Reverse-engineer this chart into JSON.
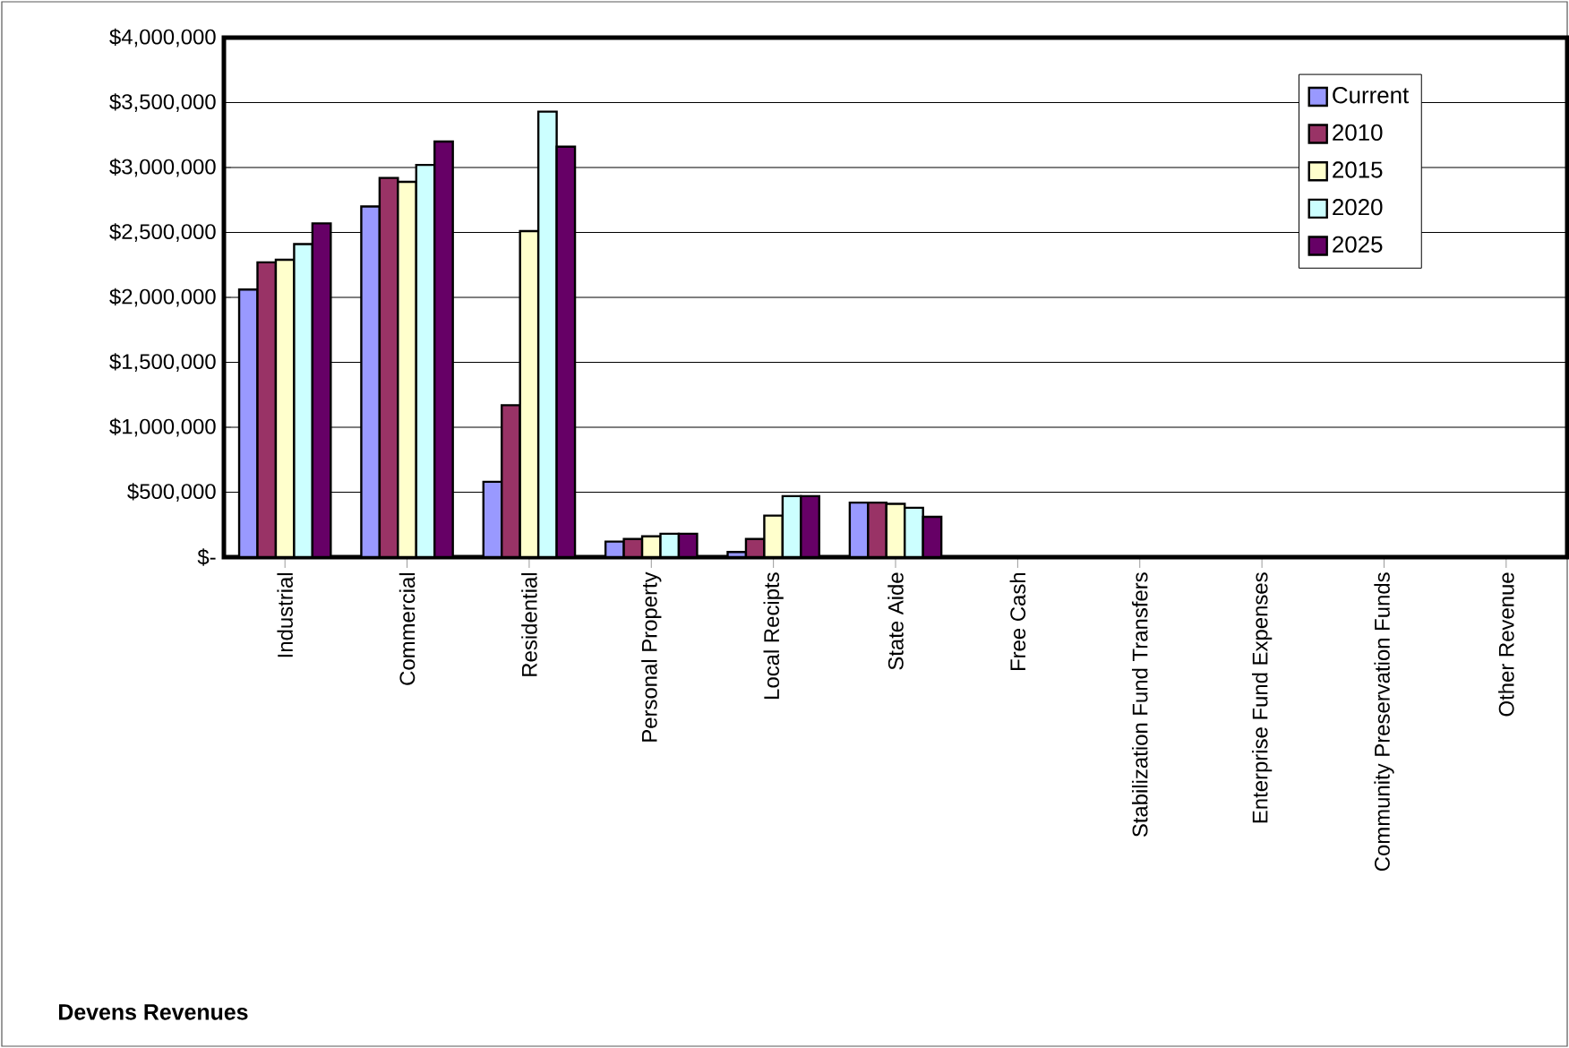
{
  "chart_data": {
    "type": "bar",
    "title": "Devens Revenues",
    "categories": [
      "Industrial",
      "Commercial",
      "Residential",
      "Personal Property",
      "Local Recipts",
      "State Aide",
      "Free Cash",
      "Stabilization Fund Transfers",
      "Enterprise Fund Expenses",
      "Community Preservation Funds",
      "Other Revenue"
    ],
    "series": [
      {
        "name": "Current",
        "color": "#9999ff",
        "values": [
          2060000,
          2700000,
          580000,
          120000,
          40000,
          420000,
          0,
          0,
          0,
          0,
          0
        ]
      },
      {
        "name": "2010",
        "color": "#993366",
        "values": [
          2270000,
          2920000,
          1170000,
          140000,
          140000,
          420000,
          0,
          0,
          0,
          0,
          0
        ]
      },
      {
        "name": "2015",
        "color": "#ffffcc",
        "values": [
          2290000,
          2890000,
          2510000,
          160000,
          320000,
          410000,
          0,
          0,
          0,
          0,
          0
        ]
      },
      {
        "name": "2020",
        "color": "#ccffff",
        "values": [
          2410000,
          3020000,
          3430000,
          180000,
          470000,
          380000,
          0,
          0,
          0,
          0,
          0
        ]
      },
      {
        "name": "2025",
        "color": "#660066",
        "values": [
          2570000,
          3200000,
          3160000,
          180000,
          470000,
          310000,
          0,
          0,
          0,
          0,
          0
        ]
      }
    ],
    "ylim": [
      0,
      4000000
    ],
    "yticks": [
      {
        "value": 0,
        "label": "$-"
      },
      {
        "value": 500000,
        "label": "$500,000"
      },
      {
        "value": 1000000,
        "label": "$1,000,000"
      },
      {
        "value": 1500000,
        "label": "$1,500,000"
      },
      {
        "value": 2000000,
        "label": "$2,000,000"
      },
      {
        "value": 2500000,
        "label": "$2,500,000"
      },
      {
        "value": 3000000,
        "label": "$3,000,000"
      },
      {
        "value": 3500000,
        "label": "$3,500,000"
      },
      {
        "value": 4000000,
        "label": "$4,000,000"
      }
    ],
    "grid": "y",
    "legend": "top right"
  }
}
